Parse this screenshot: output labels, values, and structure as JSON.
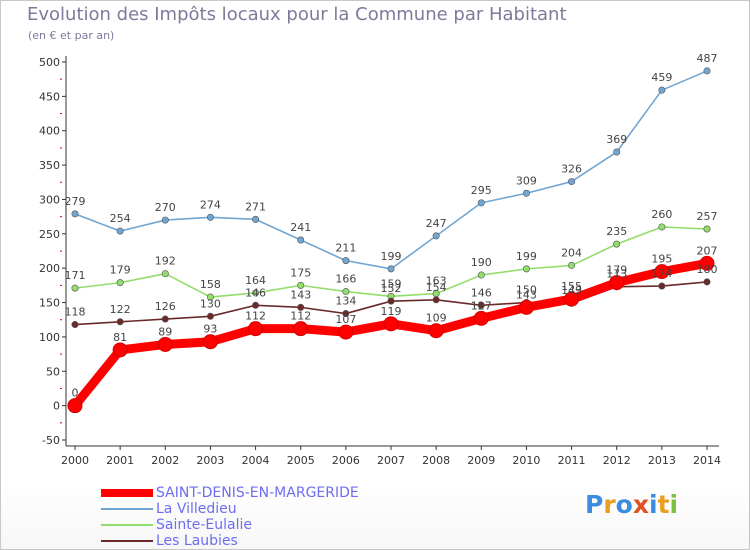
{
  "title": "Evolution des Impôts locaux pour la Commune par Habitant",
  "subtitle": "(en € et par an)",
  "logo": {
    "text": "Proxiti",
    "colors": [
      "#3a8de0",
      "#e8a020",
      "#3a8de0",
      "#e05020",
      "#3a8de0",
      "#e8a020",
      "#7cc040"
    ]
  },
  "chart_data": {
    "type": "line",
    "x": [
      "2000",
      "2001",
      "2002",
      "2003",
      "2004",
      "2005",
      "2006",
      "2007",
      "2008",
      "2009",
      "2010",
      "2011",
      "2012",
      "2013",
      "2014"
    ],
    "ylim": [
      -50,
      500
    ],
    "yticks": [
      "-50",
      "0",
      "50",
      "100",
      "150",
      "200",
      "250",
      "300",
      "350",
      "400",
      "450",
      "500"
    ],
    "grid": false,
    "legend_position": "bottom-left",
    "series": [
      {
        "name": "SAINT-DENIS-EN-MARGERIDE",
        "color": "#ff0000",
        "values": [
          0,
          81,
          89,
          93,
          112,
          112,
          107,
          119,
          109,
          127,
          143,
          155,
          179,
          195,
          207
        ],
        "labels": [
          "0",
          "81",
          "89",
          "93",
          "112",
          "112",
          "107",
          "119",
          "109",
          "127",
          "143",
          "155",
          "179",
          "195",
          "207"
        ]
      },
      {
        "name": "La Villedieu",
        "color": "#72a6d2",
        "values": [
          279,
          254,
          270,
          274,
          271,
          241,
          211,
          199,
          247,
          295,
          309,
          326,
          369,
          459,
          487
        ],
        "labels": [
          "279",
          "254",
          "270",
          "274",
          "271",
          "241",
          "211",
          "199",
          "247",
          "295",
          "309",
          "326",
          "369",
          "459",
          "487"
        ]
      },
      {
        "name": "Sainte-Eulalie",
        "color": "#92dd6c",
        "values": [
          171,
          179,
          192,
          158,
          164,
          175,
          166,
          159,
          163,
          190,
          199,
          204,
          235,
          260,
          257
        ],
        "labels": [
          "171",
          "179",
          "192",
          "158",
          "164",
          "175",
          "166",
          "159",
          "163",
          "190",
          "199",
          "204",
          "235",
          "260",
          "257"
        ]
      },
      {
        "name": "Les Laubies",
        "color": "#6b2a2a",
        "values": [
          118,
          122,
          126,
          130,
          146,
          143,
          134,
          152,
          154,
          146,
          150,
          149,
          173,
          174,
          180
        ],
        "labels": [
          "118",
          "122",
          "126",
          "130",
          "146",
          "143",
          "134",
          "152",
          "154",
          "146",
          "150",
          "149",
          "173",
          "174",
          "180"
        ]
      }
    ]
  }
}
